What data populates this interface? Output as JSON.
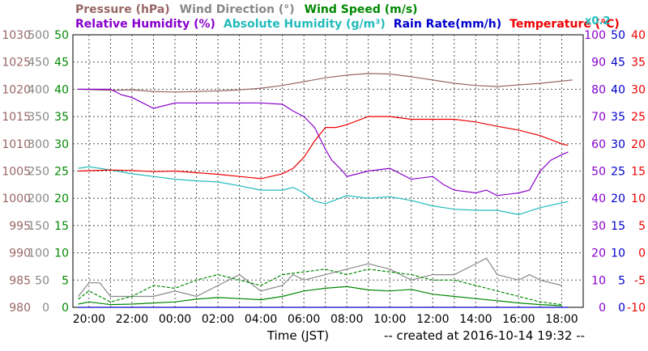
{
  "legend": {
    "row1": [
      {
        "text": "Pressure (hPa)",
        "color": "#996666"
      },
      {
        "text": "Wind Direction (°)",
        "color": "#888888"
      },
      {
        "text": "Wind Speed (m/s)",
        "color": "#008800"
      }
    ],
    "row2": [
      {
        "text": "Relative Humidity (%)",
        "color": "#8800cc"
      },
      {
        "text": "Absolute Humidity (g/m³)",
        "color": "#22bbbb"
      },
      {
        "text": "Rain Rate(mm/h)",
        "color": "#0000cc"
      },
      {
        "text": "Temperature (°C)",
        "color": "#ee0000"
      }
    ],
    "scale_note": {
      "text": "x0.2",
      "color": "#22bbbb"
    }
  },
  "footer": {
    "xlabel": "Time (JST)",
    "created": "-- created at 2016-10-14 19:32 --"
  },
  "chart_data": {
    "type": "line",
    "x_ticks": [
      "20:00",
      "22:00",
      "00:00",
      "02:00",
      "04:00",
      "06:00",
      "08:00",
      "10:00",
      "12:00",
      "14:00",
      "16:00",
      "18:00"
    ],
    "y_axes": {
      "pressure": {
        "color": "#996666",
        "ticks": [
          "1030",
          "1025",
          "1020",
          "1015",
          "1010",
          "1005",
          "1000",
          "995",
          "990",
          "985",
          "980"
        ],
        "range": [
          980,
          1030
        ]
      },
      "wind_direction": {
        "color": "#888888",
        "ticks": [
          "500",
          "450",
          "400",
          "350",
          "300",
          "250",
          "200",
          "150",
          "100",
          "50",
          "0"
        ],
        "range": [
          0,
          500
        ]
      },
      "wind_speed": {
        "color": "#008800",
        "ticks": [
          "50",
          "45",
          "40",
          "35",
          "30",
          "25",
          "20",
          "15",
          "10",
          "5",
          "0"
        ],
        "range": [
          0,
          50
        ]
      },
      "humidity": {
        "color": "#8800cc",
        "ticks": [
          "100",
          "90",
          "80",
          "70",
          "60",
          "50",
          "40",
          "30",
          "20",
          "10",
          "0"
        ],
        "range": [
          0,
          100
        ]
      },
      "rain_rate": {
        "color": "#0000cc",
        "ticks": [
          "50",
          "45",
          "40",
          "35",
          "30",
          "25",
          "20",
          "15",
          "10",
          "5",
          "0"
        ],
        "range": [
          0,
          50
        ]
      },
      "temperature": {
        "color": "#ee0000",
        "ticks": [
          "40",
          "35",
          "30",
          "25",
          "20",
          "15",
          "10",
          "5",
          "0",
          "-5",
          "-10"
        ],
        "range": [
          -10,
          40
        ]
      }
    },
    "grid": true,
    "series": {
      "pressure": {
        "color": "#996666",
        "x": [
          19.5,
          21,
          22,
          23,
          24,
          25,
          26,
          27,
          28,
          29,
          30,
          31,
          32,
          33,
          34,
          35,
          36,
          37,
          38,
          39,
          40,
          41,
          42.5
        ],
        "y": [
          1020,
          1019.8,
          1019.9,
          1019.6,
          1019.5,
          1019.6,
          1019.7,
          1019.9,
          1020.2,
          1020.7,
          1021.4,
          1022.1,
          1022.6,
          1022.9,
          1022.8,
          1022.3,
          1021.7,
          1021.1,
          1020.7,
          1020.5,
          1020.8,
          1021.1,
          1021.7
        ]
      },
      "relative_humidity": {
        "color": "#8800cc",
        "x": [
          19.5,
          21,
          21.5,
          22,
          23,
          24,
          25,
          26,
          27,
          28,
          29,
          29.5,
          30,
          30.5,
          31,
          31.3,
          31.8,
          32,
          33,
          34,
          35,
          36,
          36.5,
          37,
          38,
          38.5,
          39,
          40,
          40.5,
          41,
          41.5,
          42,
          42.3
        ],
        "y": [
          80,
          80,
          78,
          77,
          73,
          75,
          75,
          75,
          75,
          75,
          74.5,
          72,
          70,
          66,
          58,
          54,
          50,
          48,
          50,
          51,
          47,
          48,
          45,
          43,
          42,
          43,
          41,
          42,
          43,
          50,
          54,
          56,
          57
        ]
      },
      "absolute_humidity": {
        "color": "#22bbbb",
        "x": [
          19.5,
          20,
          21,
          22,
          23,
          24,
          25,
          26,
          27,
          28,
          29,
          29.5,
          30,
          30.5,
          31,
          32,
          33,
          34,
          35,
          36,
          37,
          38,
          39,
          40,
          41,
          42.3
        ],
        "y": [
          25.5,
          25.8,
          25.2,
          24.5,
          24,
          23.5,
          23.2,
          23,
          22.3,
          21.5,
          21.5,
          22,
          21,
          19.5,
          19,
          20.5,
          20,
          20.3,
          19.6,
          18.6,
          18,
          17.8,
          17.8,
          17,
          18.3,
          19.4
        ]
      },
      "temperature": {
        "color": "#ee0000",
        "x": [
          19.5,
          21,
          22,
          23,
          24,
          25,
          26,
          27,
          28,
          29,
          29.5,
          30,
          30.5,
          31,
          31.5,
          32,
          33,
          34,
          35,
          36,
          37,
          38,
          39,
          40,
          41,
          42,
          42.3
        ],
        "y": [
          15,
          15.2,
          15.1,
          14.9,
          15,
          14.7,
          14.4,
          14,
          13.6,
          14.5,
          15.5,
          17.5,
          20.5,
          23,
          23,
          23.5,
          25,
          25,
          24.5,
          24.5,
          24.5,
          24,
          23.2,
          22.5,
          21.5,
          20,
          19.7
        ]
      },
      "rain_rate": {
        "color": "#0000cc",
        "x": [
          19.5,
          42.3
        ],
        "y": [
          0,
          0
        ]
      },
      "wind_speed": {
        "color": "#008800",
        "x": [
          19.5,
          20,
          21,
          22,
          23,
          24,
          25,
          26,
          27,
          28,
          29,
          30,
          31,
          32,
          33,
          34,
          35,
          36,
          37,
          38,
          39,
          40,
          41,
          42
        ],
        "y": [
          0.6,
          1,
          0.5,
          0.6,
          0.8,
          1,
          1.5,
          1.8,
          1.6,
          1.4,
          2,
          3,
          3.5,
          3.8,
          3.2,
          3,
          3.3,
          2.4,
          2,
          1.6,
          1.2,
          0.8,
          0.5,
          0.3
        ],
        "gust_y": [
          1.5,
          3,
          1,
          2,
          4,
          3.5,
          5,
          6,
          5,
          4,
          6,
          6.5,
          7,
          6,
          7,
          6.5,
          6,
          5,
          5,
          4,
          3,
          2,
          1,
          0.5
        ]
      },
      "wind_direction": {
        "color": "#888888",
        "x": [
          19.5,
          20,
          20.5,
          21,
          22,
          23,
          24,
          25,
          26,
          27,
          28,
          29,
          29.5,
          30,
          31,
          32,
          33,
          34,
          35,
          36,
          37,
          38,
          38.5,
          39,
          40,
          40.5,
          41,
          42
        ],
        "y": [
          20,
          45,
          45,
          20,
          20,
          20,
          30,
          20,
          40,
          60,
          30,
          40,
          60,
          50,
          60,
          70,
          80,
          70,
          50,
          60,
          60,
          80,
          90,
          60,
          50,
          60,
          50,
          40
        ]
      }
    }
  }
}
